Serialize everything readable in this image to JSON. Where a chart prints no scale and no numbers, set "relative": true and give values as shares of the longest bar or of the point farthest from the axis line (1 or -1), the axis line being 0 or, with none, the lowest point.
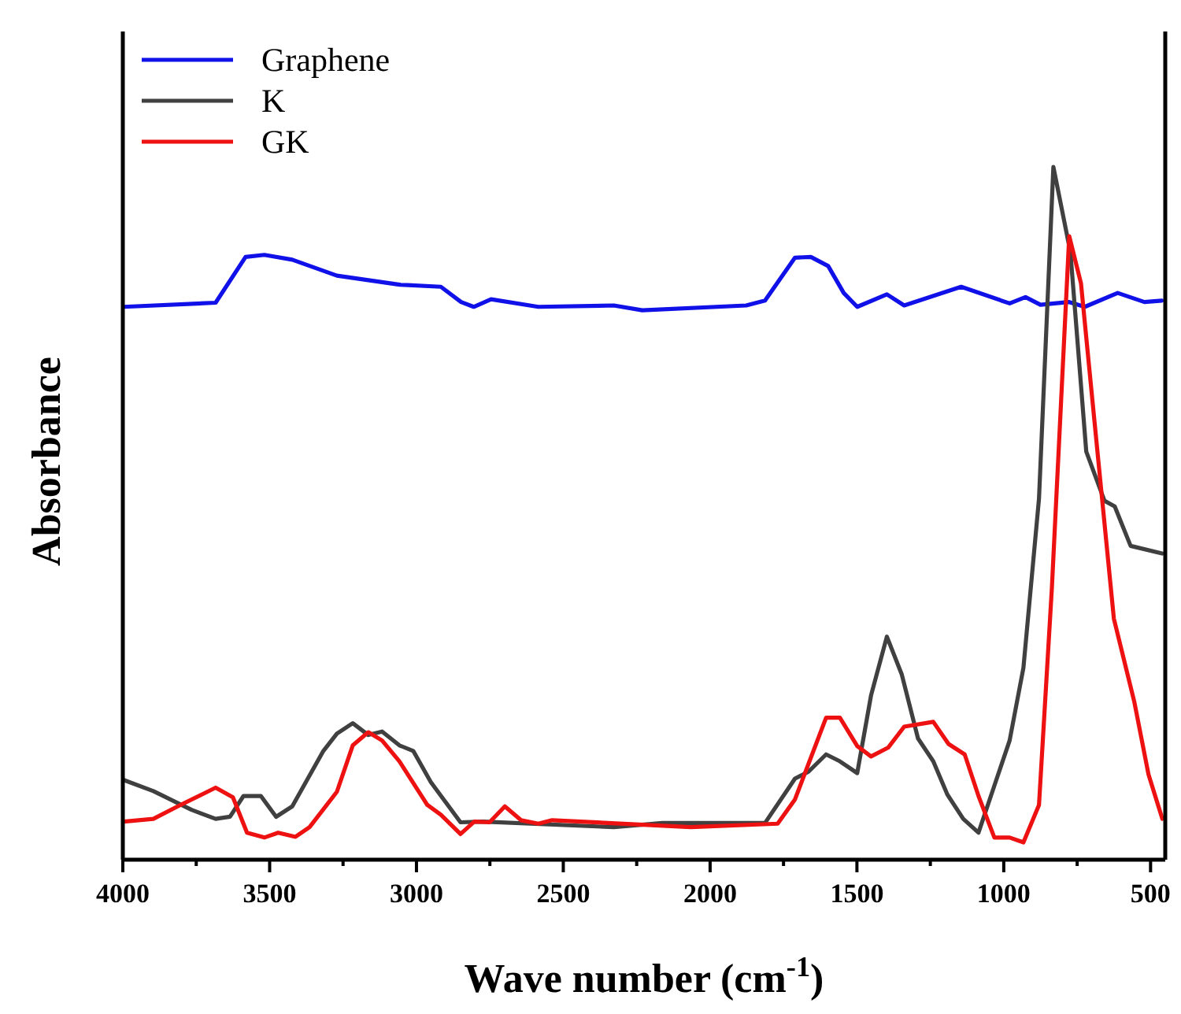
{
  "chart_data": {
    "type": "line",
    "relative": true,
    "xlabel": "Wave number (cm$^{-1}$)",
    "ylabel": "Absorbance",
    "xlim": [
      4000,
      450
    ],
    "xticks": [
      4000,
      {
        "value": 3750,
        "label": null
      },
      3500,
      {
        "value": 3250,
        "label": null
      },
      3000,
      {
        "value": 2750,
        "label": null
      },
      2500,
      {
        "value": 2250,
        "label": null
      },
      2000,
      {
        "value": 1750,
        "label": null
      },
      1500,
      {
        "value": 1250,
        "label": null
      },
      1000,
      {
        "value": 750,
        "label": null
      },
      500
    ],
    "legend": "top left",
    "grid": false,
    "line_style": "solid",
    "series": [
      {
        "name": "Graphene",
        "color": "#1010e8",
        "x": [
          3997,
          3684,
          3582,
          3518,
          3423,
          3271,
          3057,
          2917,
          2848,
          2805,
          2746,
          2585,
          2328,
          2231,
          1877,
          1813,
          1711,
          1657,
          1598,
          1545,
          1499,
          1398,
          1339,
          1145,
          980,
          926,
          875,
          779,
          724,
          612,
          521,
          462
        ],
        "values": [
          0.798,
          0.804,
          0.87,
          0.873,
          0.866,
          0.843,
          0.83,
          0.827,
          0.805,
          0.798,
          0.809,
          0.798,
          0.8,
          0.793,
          0.8,
          0.807,
          0.869,
          0.87,
          0.857,
          0.818,
          0.798,
          0.816,
          0.8,
          0.827,
          0.803,
          0.812,
          0.801,
          0.805,
          0.798,
          0.818,
          0.805,
          0.807
        ]
      },
      {
        "name": "K",
        "color": "#404040",
        "x": [
          3997,
          3896,
          3766,
          3684,
          3635,
          3589,
          3530,
          3478,
          3423,
          3317,
          3271,
          3217,
          3164,
          3117,
          3058,
          3011,
          2951,
          2904,
          2850,
          2774,
          2328,
          2162,
          1813,
          1711,
          1665,
          1605,
          1558,
          1499,
          1452,
          1398,
          1347,
          1292,
          1240,
          1192,
          1138,
          1086,
          1039,
          980,
          933,
          880,
          831,
          773,
          719,
          657,
          622,
          568,
          461
        ],
        "values": [
          0.115,
          0.099,
          0.072,
          0.059,
          0.062,
          0.092,
          0.092,
          0.062,
          0.077,
          0.157,
          0.182,
          0.197,
          0.18,
          0.185,
          0.165,
          0.157,
          0.112,
          0.085,
          0.054,
          0.055,
          0.047,
          0.053,
          0.053,
          0.117,
          0.127,
          0.152,
          0.142,
          0.125,
          0.237,
          0.322,
          0.267,
          0.175,
          0.142,
          0.094,
          0.059,
          0.039,
          0.098,
          0.172,
          0.277,
          0.521,
          1.0,
          0.877,
          0.589,
          0.518,
          0.51,
          0.453,
          0.442
        ]
      },
      {
        "name": "GK",
        "color": "#ee1111",
        "x": [
          3997,
          3896,
          3813,
          3684,
          3625,
          3577,
          3518,
          3471,
          3412,
          3364,
          3271,
          3217,
          3164,
          3117,
          3058,
          2963,
          2917,
          2850,
          2803,
          2751,
          2699,
          2644,
          2585,
          2538,
          2066,
          1770,
          1711,
          1605,
          1558,
          1499,
          1452,
          1393,
          1339,
          1240,
          1188,
          1133,
          1086,
          1032,
          980,
          933,
          880,
          836,
          777,
          737,
          702,
          625,
          555,
          507,
          460
        ],
        "values": [
          0.055,
          0.059,
          0.077,
          0.104,
          0.09,
          0.039,
          0.032,
          0.039,
          0.033,
          0.047,
          0.098,
          0.165,
          0.184,
          0.172,
          0.142,
          0.079,
          0.065,
          0.037,
          0.055,
          0.054,
          0.077,
          0.057,
          0.052,
          0.057,
          0.047,
          0.052,
          0.087,
          0.205,
          0.205,
          0.164,
          0.149,
          0.162,
          0.192,
          0.199,
          0.167,
          0.152,
          0.092,
          0.032,
          0.032,
          0.025,
          0.079,
          0.393,
          0.9,
          0.832,
          0.68,
          0.348,
          0.227,
          0.123,
          0.059
        ]
      }
    ]
  }
}
